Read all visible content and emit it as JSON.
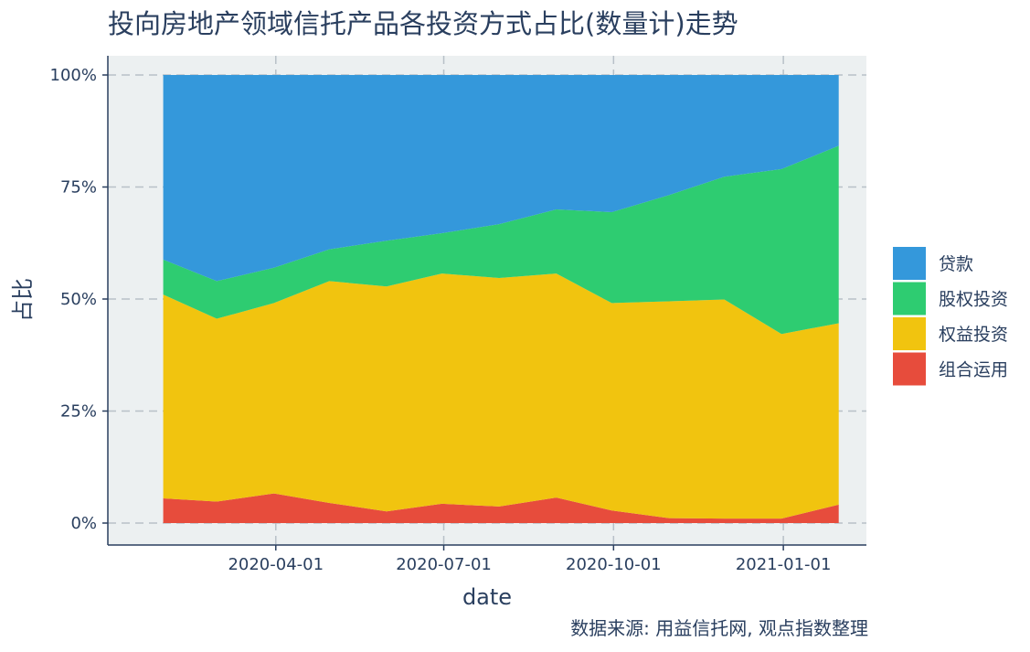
{
  "chart_data": {
    "type": "area",
    "stacked": "percent",
    "title": "投向房地产领域信托产品各投资方式占比(数量计)走势",
    "xlabel": "date",
    "ylabel": "占比",
    "ylim": [
      0,
      100
    ],
    "y_ticks": [
      "0%",
      "25%",
      "50%",
      "75%",
      "100%"
    ],
    "x_ticks": [
      "2020-04-01",
      "2020-07-01",
      "2020-10-01",
      "2021-01-01"
    ],
    "grid": true,
    "legend_position": "right",
    "x": [
      "2020-01-31",
      "2020-02-29",
      "2020-03-31",
      "2020-04-30",
      "2020-05-31",
      "2020-06-30",
      "2020-07-31",
      "2020-08-31",
      "2020-09-30",
      "2020-10-31",
      "2020-11-30",
      "2020-12-31",
      "2021-01-31"
    ],
    "series": [
      {
        "name": "组合运用",
        "color": "#e74c3c",
        "values": [
          5.5,
          4.8,
          6.6,
          4.5,
          2.6,
          4.3,
          3.7,
          5.7,
          2.8,
          1.1,
          1.0,
          1.0,
          4.1
        ]
      },
      {
        "name": "权益投资",
        "color": "#f1c40f",
        "values": [
          45.5,
          40.8,
          42.5,
          49.5,
          50.2,
          51.4,
          51.0,
          50.0,
          46.3,
          48.4,
          48.9,
          41.2,
          40.5
        ]
      },
      {
        "name": "股权投资",
        "color": "#2ecc71",
        "values": [
          7.8,
          8.4,
          7.9,
          7.1,
          10.2,
          9.0,
          12.0,
          14.3,
          20.3,
          23.7,
          27.4,
          36.8,
          39.6
        ]
      },
      {
        "name": "贷款",
        "color": "#3498db",
        "values": [
          41.2,
          46.0,
          43.0,
          38.9,
          37.0,
          35.3,
          33.3,
          30.0,
          30.6,
          26.8,
          22.7,
          21.0,
          15.8
        ]
      }
    ],
    "legend_order": [
      "贷款",
      "股权投资",
      "权益投资",
      "组合运用"
    ]
  },
  "source_note": "数据来源: 用益信托网, 观点指数整理",
  "colors": {
    "plot_bg": "#ecf0f1",
    "grid": "#b8c0c8",
    "axis": "#2a3f5f",
    "text": "#2a3f5f"
  }
}
